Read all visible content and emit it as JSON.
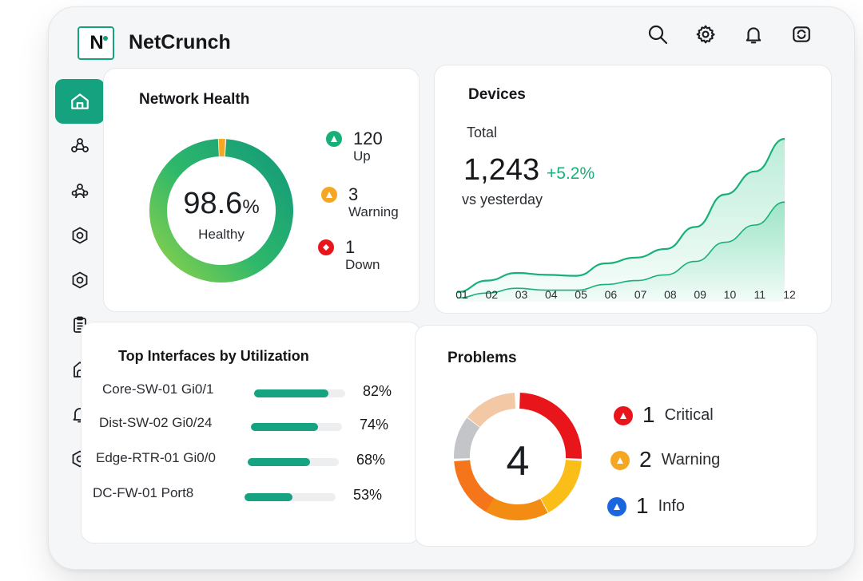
{
  "app": {
    "title": "NetCrunch",
    "logo_text": "N"
  },
  "header": {
    "icons": [
      "search-icon",
      "settings-icon",
      "bell-icon",
      "sync-icon"
    ]
  },
  "sidebar": {
    "items": [
      {
        "name": "home",
        "icon": "home-icon",
        "active": true
      },
      {
        "name": "topology",
        "icon": "network-icon"
      },
      {
        "name": "groups",
        "icon": "group-icon"
      },
      {
        "name": "nodes",
        "icon": "hexagon-icon"
      },
      {
        "name": "services",
        "icon": "hexagon-icon"
      },
      {
        "name": "reports",
        "icon": "clipboard-icon"
      },
      {
        "name": "atlas",
        "icon": "building-icon"
      },
      {
        "name": "alerts",
        "icon": "bell-icon"
      },
      {
        "name": "settings",
        "icon": "hexagon-icon"
      }
    ]
  },
  "health": {
    "title": "Network Health",
    "value": "98.6",
    "unit": "%",
    "label": "Healthy",
    "legend": [
      {
        "count": "120",
        "label": "Up",
        "color": "#18b079"
      },
      {
        "count": "3",
        "label": "Warning",
        "color": "#f5a623"
      },
      {
        "count": "1",
        "label": "Down",
        "color": "#e8151b"
      }
    ],
    "ring_fraction": 0.986
  },
  "devices": {
    "title": "Devices",
    "total_label": "Total",
    "total_value": "1,243",
    "delta": "+5.2%",
    "compare_label": "vs yesterday"
  },
  "chart_data": {
    "type": "area",
    "categories": [
      "01",
      "02",
      "03",
      "04",
      "05",
      "06",
      "07",
      "08",
      "09",
      "10",
      "11",
      "12"
    ],
    "series": [
      {
        "values": [
          10,
          22,
          30,
          28,
          27,
          40,
          46,
          55,
          78,
          112,
          136,
          170
        ]
      },
      {
        "values": [
          4,
          9,
          14,
          12,
          12,
          18,
          22,
          28,
          42,
          62,
          80,
          104
        ]
      }
    ],
    "ylim": [
      0,
      180
    ],
    "grid": false,
    "colors": [
      "#18b079",
      "#18b079"
    ]
  },
  "interfaces": {
    "title": "Top Interfaces by Utilization",
    "rows": [
      {
        "name": "Core-SW-01 Gi0/1",
        "pct": "82%",
        "value": 0.82
      },
      {
        "name": "Dist-SW-02 Gi0/24",
        "pct": "74%",
        "value": 0.74
      },
      {
        "name": "Edge-RTR-01 Gi0/0",
        "pct": "68%",
        "value": 0.68
      },
      {
        "name": "DC-FW-01 Port8",
        "pct": "53%",
        "value": 0.53
      }
    ]
  },
  "problems": {
    "title": "Problems",
    "total": "4",
    "rows": [
      {
        "count": "1",
        "label": "Critical",
        "color": "#e8151b"
      },
      {
        "count": "2",
        "label": "Warning",
        "color": "#f5a623"
      },
      {
        "count": "1",
        "label": "Info",
        "color": "#1a66e0"
      }
    ]
  }
}
